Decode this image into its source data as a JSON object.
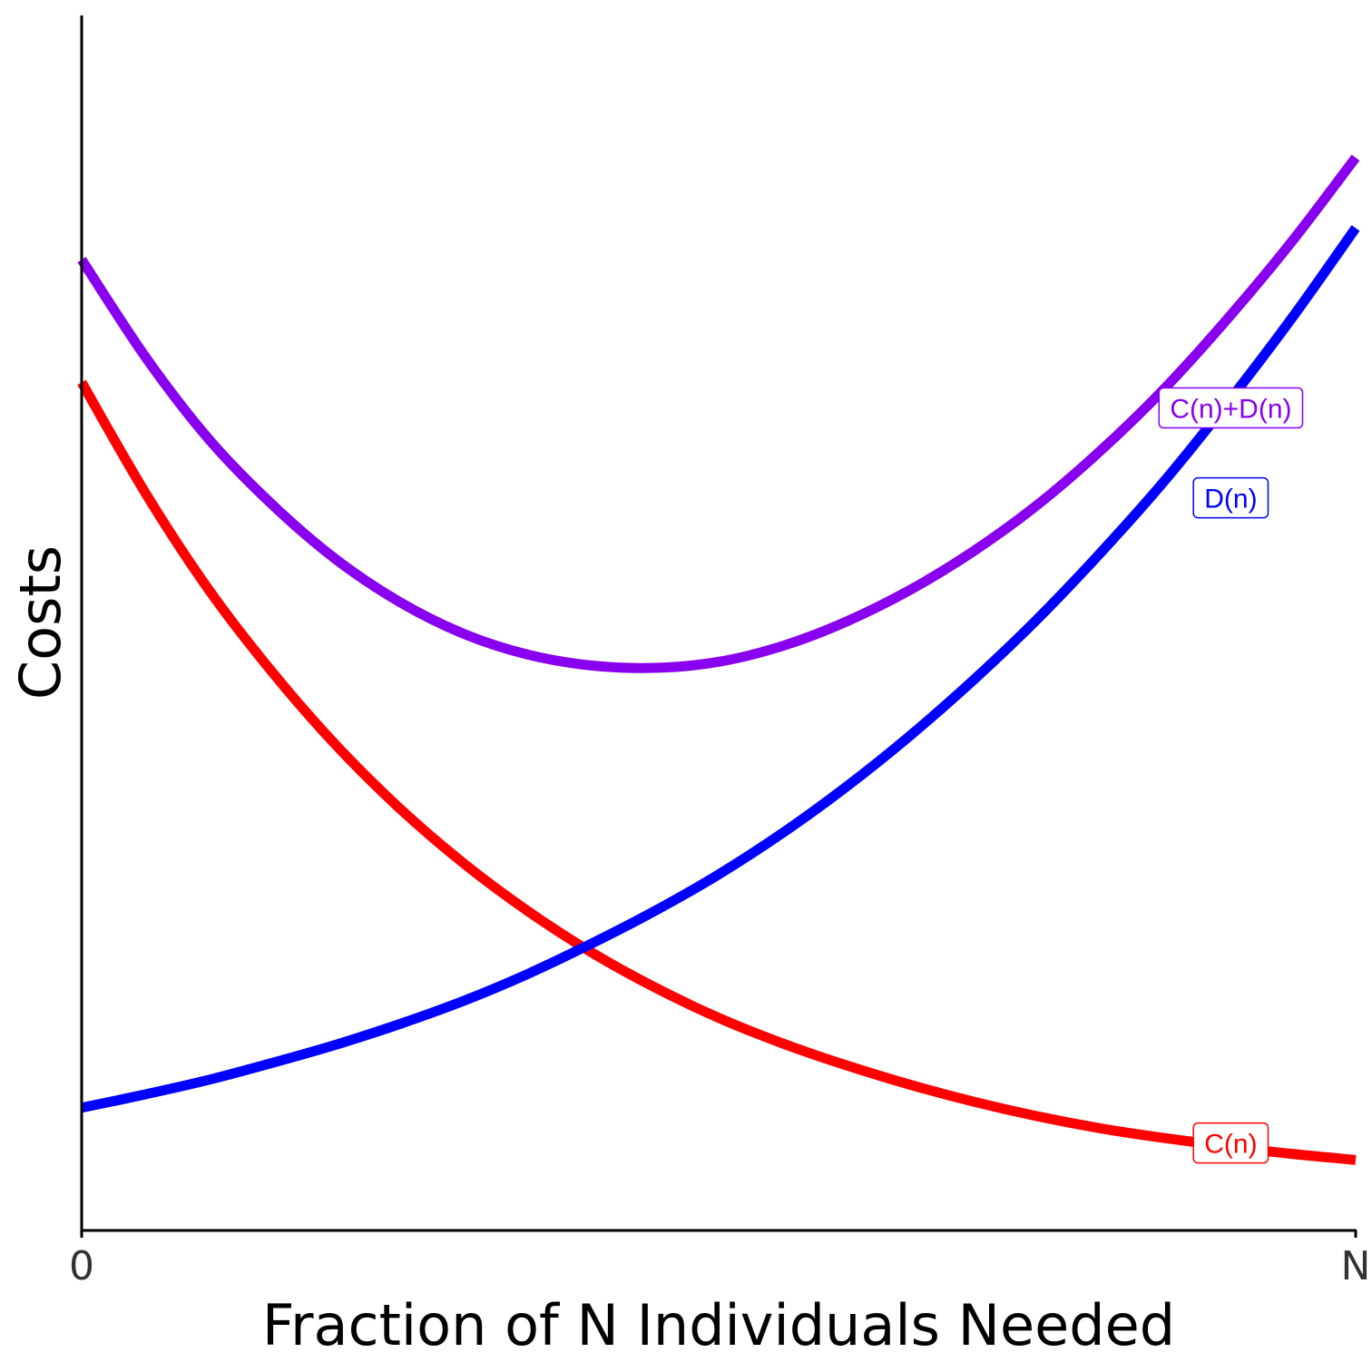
{
  "chart_data": {
    "type": "line",
    "title": "",
    "xlabel": "Fraction of N Individuals Needed",
    "ylabel": "Costs",
    "x_ticks": [
      {
        "value": 0,
        "label": "0"
      },
      {
        "value": 1,
        "label": "N"
      }
    ],
    "xlim": [
      0,
      1
    ],
    "ylim": [
      0,
      1
    ],
    "grid": false,
    "legend": "direct labels near right end of each curve",
    "series": [
      {
        "name": "C(n)",
        "color": "#ff0000",
        "x": [
          0,
          0.05,
          0.1,
          0.15,
          0.2,
          0.25,
          0.3,
          0.35,
          0.4,
          0.45,
          0.5,
          0.55,
          0.6,
          0.65,
          0.7,
          0.75,
          0.8,
          0.85,
          0.9,
          0.95,
          1
        ],
        "y": [
          0.698,
          0.607,
          0.527,
          0.459,
          0.399,
          0.347,
          0.302,
          0.263,
          0.229,
          0.2,
          0.175,
          0.154,
          0.136,
          0.12,
          0.106,
          0.094,
          0.084,
          0.076,
          0.069,
          0.063,
          0.058
        ]
      },
      {
        "name": "D(n)",
        "color": "#0000ff",
        "x": [
          0,
          0.05,
          0.1,
          0.15,
          0.2,
          0.25,
          0.3,
          0.35,
          0.4,
          0.45,
          0.5,
          0.55,
          0.6,
          0.65,
          0.7,
          0.75,
          0.8,
          0.85,
          0.9,
          0.95,
          1
        ],
        "y": [
          0.101,
          0.112,
          0.124,
          0.138,
          0.153,
          0.17,
          0.189,
          0.211,
          0.236,
          0.263,
          0.293,
          0.327,
          0.365,
          0.407,
          0.453,
          0.503,
          0.558,
          0.617,
          0.682,
          0.751,
          0.825
        ]
      },
      {
        "name": "C(n)+D(n)",
        "color": "#8800ee",
        "x": [
          0,
          0.05,
          0.1,
          0.15,
          0.2,
          0.25,
          0.3,
          0.35,
          0.4,
          0.45,
          0.5,
          0.55,
          0.6,
          0.65,
          0.7,
          0.75,
          0.8,
          0.85,
          0.9,
          0.95,
          1
        ],
        "y": [
          0.799,
          0.719,
          0.651,
          0.597,
          0.552,
          0.517,
          0.491,
          0.474,
          0.465,
          0.463,
          0.468,
          0.481,
          0.501,
          0.527,
          0.559,
          0.597,
          0.642,
          0.693,
          0.751,
          0.814,
          0.883
        ]
      }
    ],
    "labels": [
      {
        "text": "C(n)+D(n)",
        "color": "#8800ee",
        "x": 0.902,
        "y": 0.677
      },
      {
        "text": "D(n)",
        "color": "#0000ff",
        "x": 0.902,
        "y": 0.603
      },
      {
        "text": "C(n)",
        "color": "#ff0000",
        "x": 0.902,
        "y": 0.072
      }
    ]
  }
}
